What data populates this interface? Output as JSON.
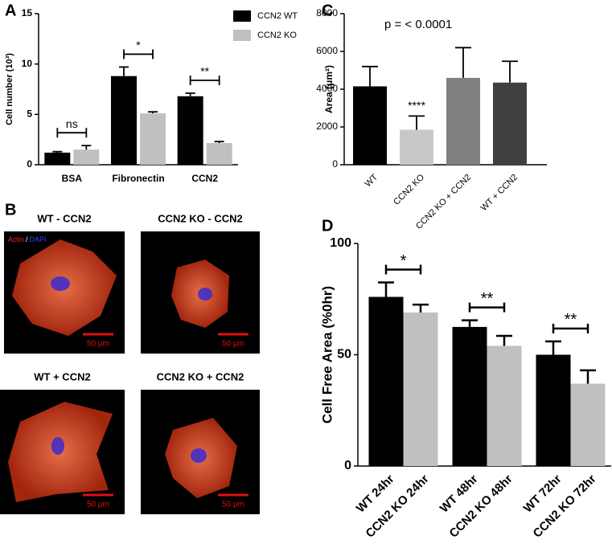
{
  "chart_data": [
    {
      "panel": "A",
      "type": "bar",
      "ylabel": "Cell number (10³)",
      "categories": [
        "BSA",
        "Fibronectin",
        "CCN2"
      ],
      "series": [
        {
          "name": "CCN2 WT",
          "color": "#000000",
          "values": [
            1.2,
            8.8,
            6.8
          ],
          "errors": [
            0.1,
            0.9,
            0.3
          ]
        },
        {
          "name": "CCN2 KO",
          "color": "#c0c0c0",
          "values": [
            1.5,
            5.1,
            2.15
          ],
          "errors": [
            0.4,
            0.15,
            0.15
          ]
        }
      ],
      "annotations": [
        "ns",
        "*",
        "**"
      ],
      "ylim": [
        0,
        15
      ],
      "yticks": [
        0,
        5,
        10,
        15
      ],
      "legend": "upper right"
    },
    {
      "panel": "C",
      "type": "bar",
      "ylabel": "Area (μm²)",
      "annotation": "p = < 0.0001",
      "categories": [
        "WT",
        "CCN2 KO",
        "CCN2 KO + CCN2",
        "WT + CCN2"
      ],
      "values": [
        4150,
        1850,
        4600,
        4350
      ],
      "errors": [
        1050,
        730,
        1600,
        1130
      ],
      "colors": [
        "#000000",
        "#c8c8c8",
        "#808080",
        "#404040"
      ],
      "significance": [
        null,
        "****",
        null,
        null
      ],
      "ylim": [
        0,
        8000
      ],
      "yticks": [
        0,
        2000,
        4000,
        6000,
        8000
      ]
    },
    {
      "panel": "D",
      "type": "bar",
      "ylabel": "Cell Free Area (%0hr)",
      "categories": [
        "WT 24hr",
        "CCN2 KO 24hr",
        "WT 48hr",
        "CCN2 KO 48hr",
        "WT 72hr",
        "CCN2 KO 72hr"
      ],
      "values": [
        76,
        69,
        62.5,
        54,
        50,
        37
      ],
      "errors": [
        6.5,
        3.5,
        3,
        4.5,
        6,
        6
      ],
      "colors": [
        "#000000",
        "#c0c0c0",
        "#000000",
        "#c0c0c0",
        "#000000",
        "#c0c0c0"
      ],
      "comparisons": [
        "*",
        "**",
        "**"
      ],
      "ylim": [
        0,
        100
      ],
      "yticks": [
        0,
        50,
        100
      ]
    }
  ],
  "images": {
    "panel": "B",
    "stain": [
      "Actin",
      "/",
      "DAPI"
    ],
    "items": [
      {
        "title": "WT - CCN2",
        "scale": "50 μm"
      },
      {
        "title": "CCN2 KO - CCN2",
        "scale": "50 μm"
      },
      {
        "title": "WT + CCN2",
        "scale": "50 μm"
      },
      {
        "title": "CCN2 KO + CCN2",
        "scale": "50 μm"
      }
    ]
  }
}
